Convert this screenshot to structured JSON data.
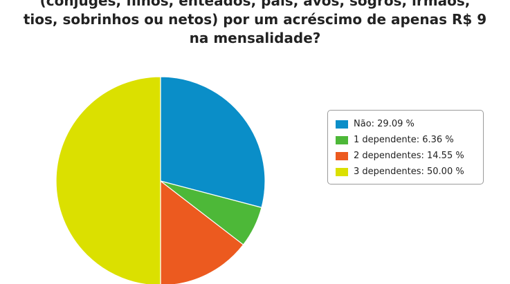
{
  "chart_data": {
    "type": "pie",
    "title_lines": [
      "(cônjuges, filhos, enteados, pais, avós, sogros, irmãos,",
      "tios, sobrinhos ou netos) por um acréscimo de apenas R$ 9",
      "na mensalidade?"
    ],
    "slices": [
      {
        "label": "Não",
        "value": 29.09,
        "color": "#0a8ec8",
        "legend_text": "Não: 29.09 %"
      },
      {
        "label": "1 dependente",
        "value": 6.36,
        "color": "#4db838",
        "legend_text": "1 dependente: 6.36 %"
      },
      {
        "label": "2 dependentes",
        "value": 14.55,
        "color": "#ec5a1f",
        "legend_text": "2 dependentes: 14.55 %"
      },
      {
        "label": "3 dependentes",
        "value": 50.0,
        "color": "#dbe000",
        "legend_text": "3 dependentes: 50.00 %"
      }
    ],
    "start_angle": "12 o'clock",
    "direction": "clockwise",
    "legend_position": "right"
  }
}
